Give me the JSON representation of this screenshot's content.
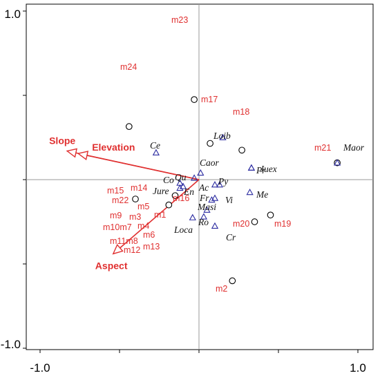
{
  "chart_data": {
    "type": "scatter",
    "title": "",
    "xlabel": "",
    "ylabel": "",
    "xlim": [
      -1.1,
      1.1
    ],
    "ylim": [
      -1.05,
      1.0
    ],
    "x_ticks": [
      {
        "value": -1.0,
        "label": "-1.0"
      },
      {
        "value": 1.0,
        "label": "1.0"
      }
    ],
    "y_ticks": [
      {
        "value": 1.0,
        "label": "1.0"
      },
      {
        "value": -1.0,
        "label": "-1.0"
      }
    ],
    "colors": {
      "sites": "#e03030",
      "species": "#2a2aa0",
      "arrows": "#e03030"
    },
    "sites": [
      {
        "name": "m23",
        "x": -0.03,
        "y": 0.95
      },
      {
        "name": "m24",
        "x": -0.44,
        "y": 0.63
      },
      {
        "name": "m17",
        "x": 0.07,
        "y": 0.43
      },
      {
        "name": "m18",
        "x": 0.27,
        "y": 0.35
      },
      {
        "name": "m21",
        "x": 0.87,
        "y": 0.2
      },
      {
        "name": "m22",
        "x": -0.4,
        "y": -0.23
      },
      {
        "name": "m5",
        "x": -0.19,
        "y": -0.3
      },
      {
        "name": "m16",
        "x": -0.15,
        "y": -0.19
      },
      {
        "name": "m20",
        "x": 0.35,
        "y": -0.5
      },
      {
        "name": "m19",
        "x": 0.45,
        "y": -0.42
      },
      {
        "name": "m2",
        "x": 0.21,
        "y": -1.2
      }
    ],
    "site_labels_only": [
      "m15",
      "m14",
      "m9",
      "m3",
      "m1",
      "m10m7",
      "m4",
      "m6",
      "m11m8",
      "m12",
      "m13"
    ],
    "species": [
      {
        "name": "Ce",
        "x": -0.27,
        "y": 0.32
      },
      {
        "name": "Loib",
        "x": 0.15,
        "y": 0.5
      },
      {
        "name": "Maor",
        "x": 0.87,
        "y": 0.2
      },
      {
        "name": "Caor",
        "x": 0.01,
        "y": 0.08
      },
      {
        "name": "Qu",
        "x": -0.03,
        "y": 0.02
      },
      {
        "name": "Co",
        "x": -0.12,
        "y": -0.04
      },
      {
        "name": "En",
        "x": -0.1,
        "y": -0.08
      },
      {
        "name": "Jure",
        "x": -0.12,
        "y": -0.1
      },
      {
        "name": "Pr",
        "x": 0.33,
        "y": 0.14
      },
      {
        "name": "Juex",
        "x": 0.33,
        "y": 0.14
      },
      {
        "name": "Py",
        "x": 0.13,
        "y": -0.06
      },
      {
        "name": "Ac",
        "x": 0.1,
        "y": -0.06
      },
      {
        "name": "Me",
        "x": 0.32,
        "y": -0.15
      },
      {
        "name": "Fr",
        "x": 0.08,
        "y": -0.24
      },
      {
        "name": "Vi",
        "x": 0.1,
        "y": -0.22
      },
      {
        "name": "Masi",
        "x": 0.05,
        "y": -0.36
      },
      {
        "name": "Ro",
        "x": 0.03,
        "y": -0.44
      },
      {
        "name": "Loca",
        "x": -0.04,
        "y": -0.45
      },
      {
        "name": "Cr",
        "x": 0.1,
        "y": -0.55
      }
    ],
    "environment_arrows": [
      {
        "name": "Slope",
        "x": -0.83,
        "y": 0.34
      },
      {
        "name": "Elevation",
        "x": -0.76,
        "y": 0.31
      },
      {
        "name": "Aspect",
        "x": -0.54,
        "y": -0.88
      }
    ]
  }
}
